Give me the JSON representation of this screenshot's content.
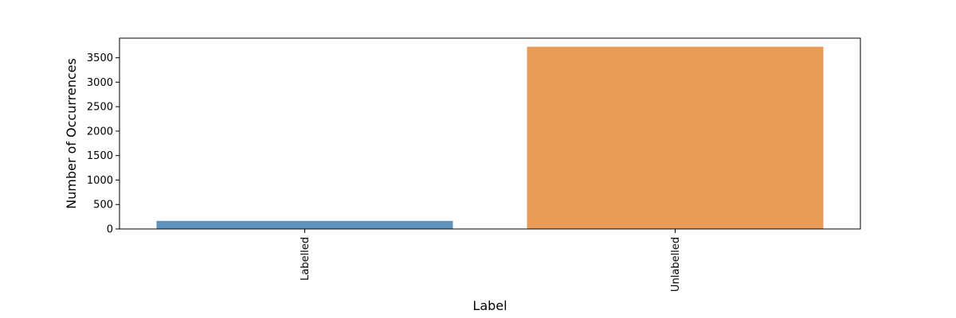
{
  "chart_data": {
    "type": "bar",
    "title": "",
    "xlabel": "Label",
    "ylabel": "Number of Occurrences",
    "categories": [
      "Labelled",
      "Unlabelled"
    ],
    "values": [
      165,
      3725
    ],
    "ylim": [
      0,
      3900
    ],
    "yticks": [
      0,
      500,
      1000,
      1500,
      2000,
      2500,
      3000,
      3500
    ],
    "colors": [
      "#5f93bb",
      "#e89c58"
    ],
    "grid": false,
    "legend": "none",
    "xtick_rotation": "vertical"
  }
}
